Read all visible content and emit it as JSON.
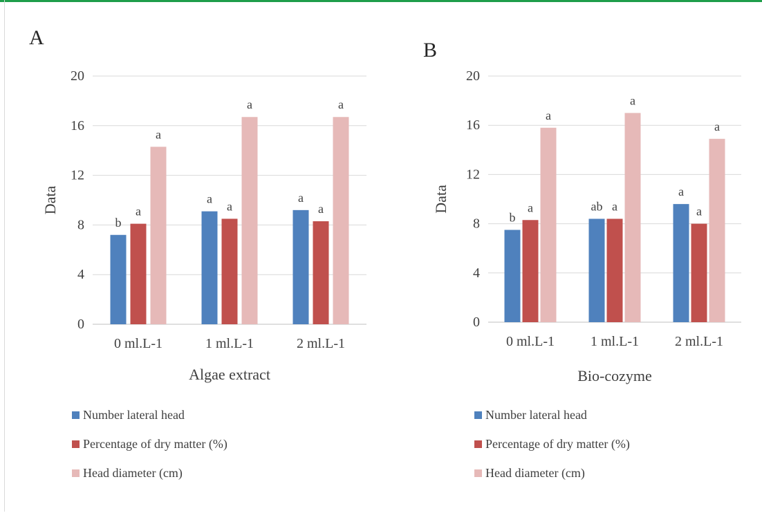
{
  "colors": {
    "series1": "#4f81bd",
    "series2": "#c0504d",
    "series3": "#e6b9b8",
    "grid": "#d9d9d9",
    "axis": "#bfbfbf",
    "top_rule": "#1e9e4a"
  },
  "panels": [
    {
      "letter": "A"
    },
    {
      "letter": "B"
    }
  ],
  "chart_data": [
    {
      "type": "bar",
      "title": "",
      "xlabel": "Algae extract",
      "ylabel": "Data",
      "categories": [
        "0 ml.L-1",
        "1 ml.L-1",
        "2 ml.L-1"
      ],
      "ylim": [
        0,
        20
      ],
      "yticks": [
        0,
        4,
        8,
        12,
        16,
        20
      ],
      "grid": true,
      "legend_position": "bottom-left",
      "series": [
        {
          "name": "Number lateral head",
          "values": [
            7.2,
            9.1,
            9.2
          ],
          "labels": [
            "b",
            "a",
            "a"
          ]
        },
        {
          "name": "Percentage of dry matter (%)",
          "values": [
            8.1,
            8.5,
            8.3
          ],
          "labels": [
            "a",
            "a",
            "a"
          ]
        },
        {
          "name": "Head diameter (cm)",
          "values": [
            14.3,
            16.7,
            16.7
          ],
          "labels": [
            "a",
            "a",
            "a"
          ]
        }
      ]
    },
    {
      "type": "bar",
      "title": "",
      "xlabel": "Bio-cozyme",
      "ylabel": "Data",
      "categories": [
        "0 ml.L-1",
        "1 ml.L-1",
        "2 ml.L-1"
      ],
      "ylim": [
        0,
        20
      ],
      "yticks": [
        0,
        4,
        8,
        12,
        16,
        20
      ],
      "grid": true,
      "legend_position": "bottom-left",
      "series": [
        {
          "name": "Number lateral head",
          "values": [
            7.5,
            8.4,
            9.6
          ],
          "labels": [
            "b",
            "ab",
            "a"
          ]
        },
        {
          "name": "Percentage of dry matter (%)",
          "values": [
            8.3,
            8.4,
            8.0
          ],
          "labels": [
            "a",
            "a",
            "a"
          ]
        },
        {
          "name": "Head diameter (cm)",
          "values": [
            15.8,
            17.0,
            14.9
          ],
          "labels": [
            "a",
            "a",
            "a"
          ]
        }
      ]
    }
  ]
}
